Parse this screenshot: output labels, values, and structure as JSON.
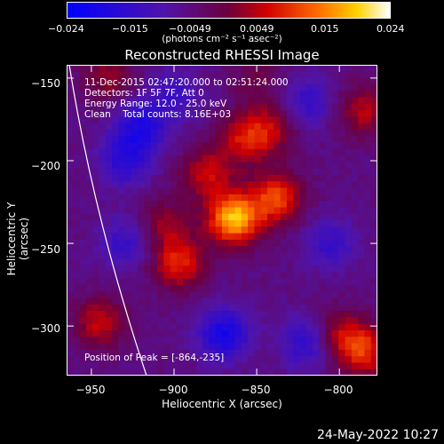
{
  "colorbar": {
    "tick_labels": [
      "−0.024",
      "−0.015",
      "−0.0049",
      "0.0049",
      "0.015",
      "0.024"
    ],
    "unit_label": "(photons cm⁻² s⁻¹ asec⁻²)",
    "range": [
      -0.024,
      0.024
    ]
  },
  "info": {
    "time": "11-Dec-2015 02:47:20.000 to 02:51:24.000",
    "detectors": "Detectors: 1F 5F 7F, Att 0",
    "energy": "Energy Range: 12.0 - 25.0 keV",
    "clean": "Clean    Total counts: 8.16E+03",
    "peak": "Position of Peak = [-864,-235]"
  },
  "footer": {
    "date": "24-May-2022 10:27"
  },
  "chart_data": {
    "type": "heatmap",
    "title": "Reconstructed RHESSI Image",
    "xlabel": "Heliocentric X (arcsec)",
    "ylabel": "Heliocentric Y (arcsec)",
    "xlim": [
      -965,
      -777
    ],
    "ylim": [
      -330,
      -142
    ],
    "x_ticks": [
      -950,
      -900,
      -850,
      -800
    ],
    "x_tick_labels": [
      "−950",
      "−900",
      "−850",
      "−800"
    ],
    "y_ticks": [
      -150,
      -200,
      -250,
      -300
    ],
    "y_tick_labels": [
      "−150",
      "−200",
      "−250",
      "−300"
    ],
    "peak": [
      -864,
      -235
    ],
    "sources": [
      {
        "x": -864,
        "y": -235,
        "amp": 0.024
      },
      {
        "x": -838,
        "y": -223,
        "amp": 0.016
      },
      {
        "x": -880,
        "y": -208,
        "amp": 0.011
      },
      {
        "x": -897,
        "y": -262,
        "amp": 0.014
      },
      {
        "x": -905,
        "y": -238,
        "amp": 0.008
      },
      {
        "x": -857,
        "y": -187,
        "amp": 0.012
      },
      {
        "x": -840,
        "y": -180,
        "amp": 0.009
      },
      {
        "x": -945,
        "y": -298,
        "amp": 0.011
      },
      {
        "x": -940,
        "y": -150,
        "amp": 0.008
      },
      {
        "x": -785,
        "y": -170,
        "amp": 0.01
      },
      {
        "x": -785,
        "y": -315,
        "amp": 0.014
      },
      {
        "x": -800,
        "y": -305,
        "amp": 0.009
      },
      {
        "x": -850,
        "y": -150,
        "amp": 0.005
      },
      {
        "x": -930,
        "y": -200,
        "amp": -0.01
      },
      {
        "x": -920,
        "y": -180,
        "amp": -0.012
      },
      {
        "x": -930,
        "y": -250,
        "amp": -0.008
      },
      {
        "x": -870,
        "y": -305,
        "amp": -0.014
      },
      {
        "x": -820,
        "y": -310,
        "amp": -0.01
      },
      {
        "x": -805,
        "y": -250,
        "amp": -0.008
      },
      {
        "x": -820,
        "y": -165,
        "amp": -0.009
      },
      {
        "x": -900,
        "y": -160,
        "amp": -0.007
      }
    ]
  }
}
